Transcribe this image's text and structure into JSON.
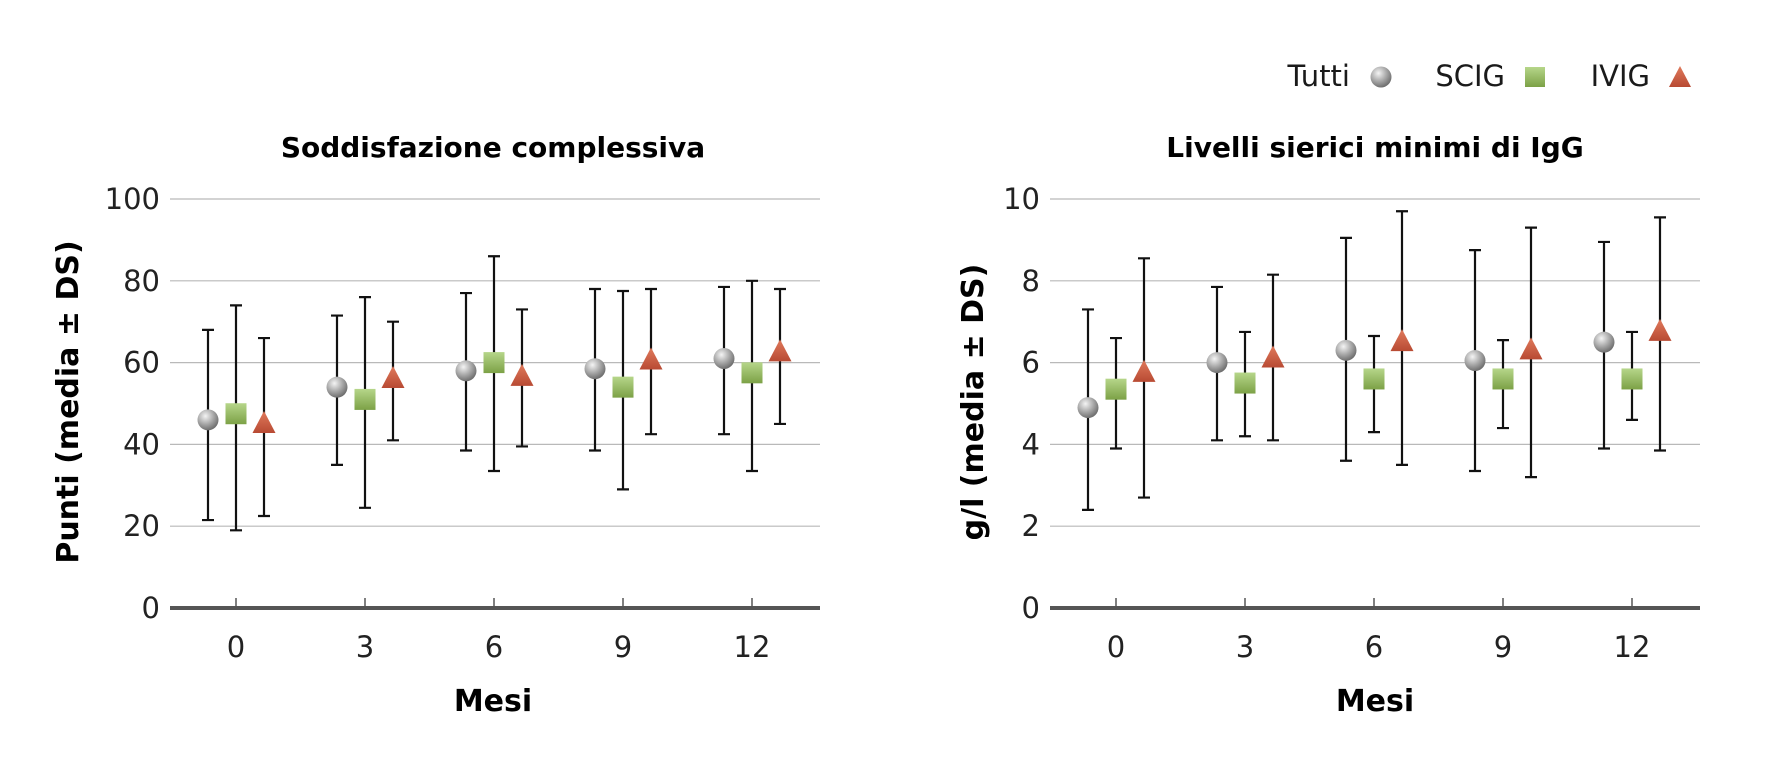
{
  "legend": {
    "items": [
      {
        "label": "Tutti",
        "marker": "circle",
        "color": "#9e9e9e"
      },
      {
        "label": "SCIG",
        "marker": "square",
        "color": "#8cb456"
      },
      {
        "label": "IVIG",
        "marker": "triangle",
        "color": "#cc5a40"
      }
    ]
  },
  "chart_data": [
    {
      "type": "scatter",
      "title": "Soddisfazione complessiva",
      "xlabel": "Mesi",
      "ylabel": "Punti (media ± DS)",
      "categories": [
        "0",
        "3",
        "6",
        "9",
        "12"
      ],
      "ylim": [
        0,
        100
      ],
      "yticks": [
        0,
        20,
        40,
        60,
        80,
        100
      ],
      "grid": true,
      "series": [
        {
          "name": "Tutti",
          "values": [
            46,
            54,
            58,
            58.5,
            61
          ],
          "lower": [
            21.5,
            35,
            38.5,
            38.5,
            42.5
          ],
          "upper": [
            68,
            71.5,
            77,
            78,
            78.5
          ]
        },
        {
          "name": "SCIG",
          "values": [
            47.5,
            51,
            60,
            54,
            57.5
          ],
          "lower": [
            19,
            24.5,
            33.5,
            29,
            33.5
          ],
          "upper": [
            74,
            76,
            86,
            77.5,
            80
          ]
        },
        {
          "name": "IVIG",
          "values": [
            45,
            56,
            56.5,
            60.5,
            62.5
          ],
          "lower": [
            22.5,
            41,
            39.5,
            42.5,
            45
          ],
          "upper": [
            66,
            70,
            73,
            78,
            78
          ]
        }
      ]
    },
    {
      "type": "scatter",
      "title": "Livelli sierici minimi di IgG",
      "xlabel": "Mesi",
      "ylabel": "g/l (media ± DS)",
      "categories": [
        "0",
        "3",
        "6",
        "9",
        "12"
      ],
      "ylim": [
        0,
        10
      ],
      "yticks": [
        0,
        2,
        4,
        6,
        8,
        10
      ],
      "grid": true,
      "series": [
        {
          "name": "Tutti",
          "values": [
            4.9,
            6.0,
            6.3,
            6.05,
            6.5
          ],
          "lower": [
            2.4,
            4.1,
            3.6,
            3.35,
            3.9
          ],
          "upper": [
            7.3,
            7.85,
            9.05,
            8.75,
            8.95
          ]
        },
        {
          "name": "SCIG",
          "values": [
            5.35,
            5.5,
            5.6,
            5.6,
            5.6
          ],
          "lower": [
            3.9,
            4.2,
            4.3,
            4.4,
            4.6
          ],
          "upper": [
            6.6,
            6.75,
            6.65,
            6.55,
            6.75
          ]
        },
        {
          "name": "IVIG",
          "values": [
            5.75,
            6.1,
            6.5,
            6.3,
            6.75
          ],
          "lower": [
            2.7,
            4.1,
            3.5,
            3.2,
            3.85
          ],
          "upper": [
            8.55,
            8.15,
            9.7,
            9.3,
            9.55
          ]
        }
      ]
    }
  ]
}
